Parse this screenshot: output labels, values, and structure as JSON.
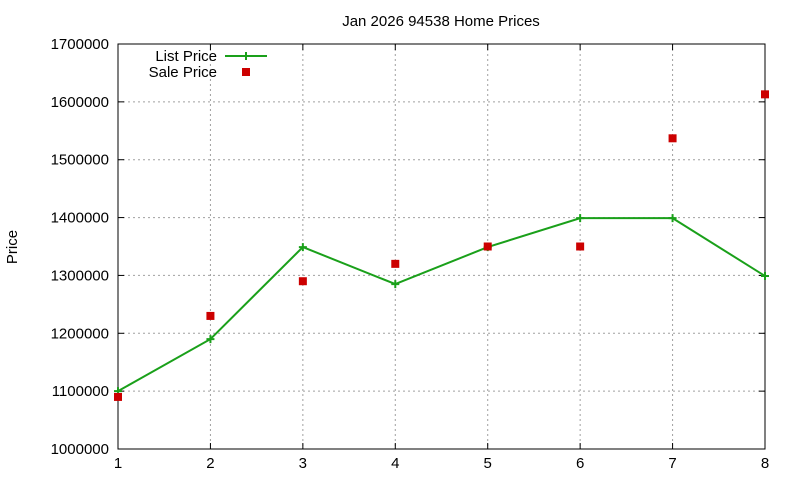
{
  "chart_data": {
    "type": "line",
    "title": "Jan 2026 94538 Home Prices",
    "xlabel": "",
    "ylabel": "Price",
    "xlim": [
      1,
      8
    ],
    "ylim": [
      1000000,
      1700000
    ],
    "xticks": [
      "1",
      "2",
      "3",
      "4",
      "5",
      "6",
      "7",
      "8"
    ],
    "yticks": [
      "1000000",
      "1100000",
      "1200000",
      "1300000",
      "1400000",
      "1500000",
      "1600000",
      "1700000"
    ],
    "grid": true,
    "legend_position": "top-left",
    "series": [
      {
        "name": "List Price",
        "style": "line-with-plus",
        "color": "#1aa01a",
        "x": [
          1,
          2,
          3,
          4,
          5,
          6,
          7,
          8
        ],
        "y": [
          1100000,
          1190000,
          1349000,
          1285000,
          1349000,
          1399000,
          1399000,
          1299000
        ]
      },
      {
        "name": "Sale Price",
        "style": "points-square",
        "color": "#cc0000",
        "x": [
          1,
          2,
          3,
          4,
          5,
          6,
          7,
          8
        ],
        "y": [
          1090000,
          1230000,
          1290000,
          1320000,
          1350000,
          1350000,
          1537000,
          1613000
        ]
      }
    ]
  }
}
